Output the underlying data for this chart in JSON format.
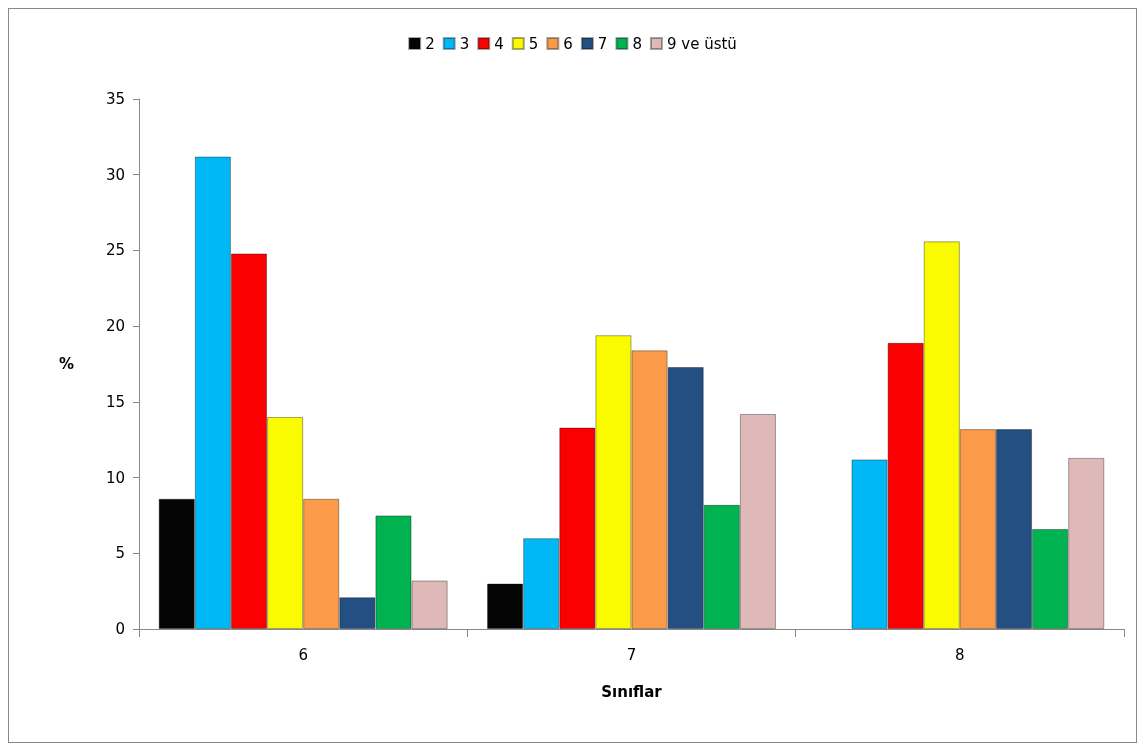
{
  "chart_data": {
    "type": "bar",
    "xlabel": "Sınıflar",
    "ylabel": "%",
    "categories": [
      "6",
      "7",
      "8"
    ],
    "series": [
      {
        "name": "2",
        "color": "#050505",
        "values": [
          8.6,
          3.0,
          null
        ]
      },
      {
        "name": "3",
        "color": "#00b8f5",
        "values": [
          31.2,
          6.0,
          11.2
        ]
      },
      {
        "name": "4",
        "color": "#fa0000",
        "values": [
          24.8,
          13.3,
          18.9
        ]
      },
      {
        "name": "5",
        "color": "#fafa00",
        "values": [
          14.0,
          19.4,
          25.6
        ]
      },
      {
        "name": "6",
        "color": "#fb9b4a",
        "values": [
          8.6,
          18.4,
          13.2
        ]
      },
      {
        "name": "7",
        "color": "#234f82",
        "values": [
          2.1,
          17.3,
          13.2
        ]
      },
      {
        "name": "8",
        "color": "#00b350",
        "values": [
          7.5,
          8.2,
          6.6
        ]
      },
      {
        "name": "9 ve üstü",
        "color": "#dfb8b8",
        "values": [
          3.2,
          14.2,
          11.3
        ]
      }
    ],
    "ylim": [
      0,
      35
    ],
    "yticks": [
      0,
      5,
      10,
      15,
      20,
      25,
      30,
      35
    ],
    "grid": false,
    "legend": "top"
  }
}
